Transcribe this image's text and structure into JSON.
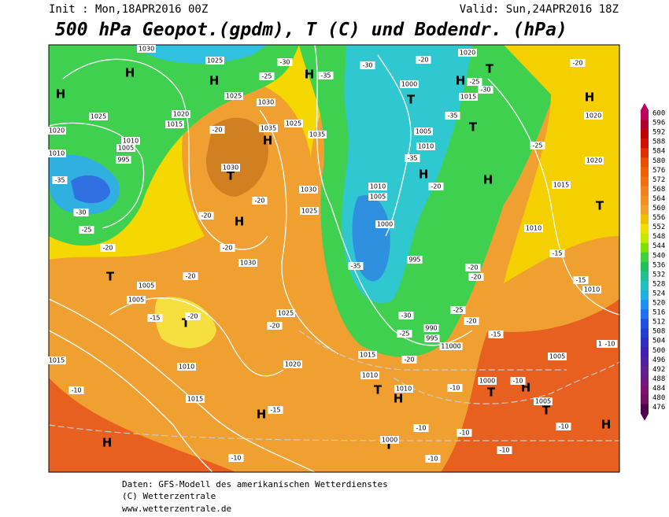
{
  "header": {
    "init": "Init : Mon,18APR2016 00Z",
    "valid": "Valid: Sun,24APR2016 18Z",
    "title": "500 hPa Geopot.(gpdm), T (C) und Bodendr. (hPa)"
  },
  "map": {
    "labels": [
      "H",
      "H",
      "H",
      "H",
      "T",
      "H",
      "T",
      "T",
      "H",
      "H",
      "T",
      "H",
      "H",
      "H",
      "T",
      "T",
      "T",
      "T",
      "H",
      "T",
      "H",
      "H",
      "T",
      "H",
      "H",
      "T",
      "1030",
      "1025",
      "1025",
      "1030",
      "1025",
      "1020",
      "1015",
      "1035",
      "1025",
      "1035",
      "1010",
      "1005",
      "1010",
      "995",
      "1020",
      "1030",
      "1030",
      "1025",
      "1030",
      "1005",
      "1005",
      "1025",
      "1020",
      "1010",
      "1015",
      "1015",
      "1000",
      "1015",
      "1005",
      "1010",
      "1010",
      "1005",
      "1000",
      "995",
      "990",
      "995",
      "11000",
      "1015",
      "1010",
      "1010",
      "1000",
      "1005",
      "1005",
      "1000",
      "1020",
      "1020",
      "1020",
      "1015",
      "1010",
      "1010",
      "1010",
      "-30",
      "-20",
      "-25",
      "-30",
      "-35",
      "-25",
      "-30",
      "-35",
      "-25",
      "-35",
      "-20",
      "-35",
      "-30",
      "-25",
      "-20",
      "-20",
      "-20",
      "-20",
      "-20",
      "-20",
      "-15",
      "-20",
      "-20",
      "-35",
      "-20",
      "-20",
      "-25",
      "-30",
      "-25",
      "-20",
      "-15",
      "-20",
      "-10",
      "-15",
      "-10",
      "-10",
      "-10",
      "-10",
      "-10",
      "-10",
      "-15",
      "-15",
      "-10",
      "-10",
      "-10",
      "-20"
    ]
  },
  "colorbar": {
    "levels": [
      600,
      596,
      592,
      588,
      584,
      580,
      576,
      572,
      568,
      564,
      560,
      556,
      552,
      548,
      544,
      540,
      536,
      532,
      528,
      524,
      520,
      516,
      512,
      508,
      504,
      500,
      496,
      492,
      488,
      484,
      480,
      476
    ],
    "colors": [
      "#c00060",
      "#b00030",
      "#c00000",
      "#d01000",
      "#e03000",
      "#e85000",
      "#f06000",
      "#f07010",
      "#f08020",
      "#f09020",
      "#f0a030",
      "#f0c000",
      "#f0e000",
      "#c8e800",
      "#80e000",
      "#40d040",
      "#20c060",
      "#20c090",
      "#20c0c0",
      "#20b0e0",
      "#2090f0",
      "#2070f0",
      "#2050e0",
      "#2040d0",
      "#3030c0",
      "#4020b0",
      "#5020a0",
      "#602090",
      "#701880",
      "#801070",
      "#701060",
      "#500050"
    ]
  },
  "footer": {
    "line1": "Daten: GFS-Modell des amerikanischen Wetterdienstes",
    "line2": "(C) Wetterzentrale",
    "line3": "www.wetterzentrale.de"
  }
}
